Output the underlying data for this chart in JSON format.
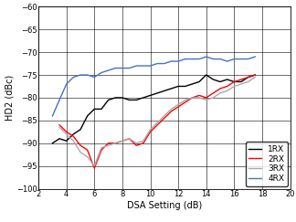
{
  "title": "",
  "xlabel": "DSA Setting (dB)",
  "ylabel": "HD2 (dBc)",
  "xlim": [
    2,
    20
  ],
  "ylim": [
    -100,
    -60
  ],
  "xticks": [
    2,
    4,
    6,
    8,
    10,
    12,
    14,
    16,
    18,
    20
  ],
  "yticks": [
    -100,
    -95,
    -90,
    -85,
    -80,
    -75,
    -70,
    -65,
    -60
  ],
  "series": [
    {
      "label": "1RX",
      "color": "#000000",
      "linewidth": 1.0,
      "linestyle": "solid",
      "x": [
        3.0,
        3.5,
        4.0,
        4.5,
        5.0,
        5.5,
        6.0,
        6.5,
        7.0,
        7.5,
        8.0,
        8.5,
        9.0,
        9.5,
        10.0,
        10.5,
        11.0,
        11.5,
        12.0,
        12.5,
        13.0,
        13.5,
        14.0,
        14.5,
        15.0,
        15.5,
        16.0,
        16.5,
        17.0,
        17.5
      ],
      "y": [
        -90.0,
        -89.0,
        -89.5,
        -88.0,
        -87.0,
        -84.0,
        -82.5,
        -82.5,
        -80.5,
        -80.0,
        -80.0,
        -80.5,
        -80.5,
        -80.0,
        -79.5,
        -79.0,
        -78.5,
        -78.0,
        -77.5,
        -77.5,
        -77.0,
        -76.5,
        -75.0,
        -76.0,
        -76.5,
        -76.0,
        -76.5,
        -76.5,
        -75.5,
        -75.0
      ]
    },
    {
      "label": "2RX",
      "color": "#ff0000",
      "linewidth": 1.0,
      "linestyle": "solid",
      "x": [
        3.5,
        4.0,
        4.5,
        5.0,
        5.5,
        6.0,
        6.5,
        7.0,
        7.5,
        8.0,
        8.5,
        9.0,
        9.5,
        10.0,
        10.5,
        11.0,
        11.5,
        12.0,
        12.5,
        13.0,
        13.5,
        14.0,
        14.5,
        15.0,
        15.5,
        16.0,
        16.5,
        17.0,
        17.5
      ],
      "y": [
        -86.0,
        -87.5,
        -88.5,
        -90.5,
        -91.5,
        -95.5,
        -91.5,
        -90.0,
        -90.0,
        -89.5,
        -89.0,
        -90.5,
        -90.0,
        -87.5,
        -86.0,
        -84.5,
        -83.0,
        -82.0,
        -81.0,
        -80.0,
        -79.5,
        -80.0,
        -79.0,
        -78.0,
        -77.5,
        -76.5,
        -76.0,
        -75.5,
        -75.0
      ]
    },
    {
      "label": "3RX",
      "color": "#aaaaaa",
      "linewidth": 1.0,
      "linestyle": "solid",
      "x": [
        3.5,
        4.0,
        4.5,
        5.0,
        5.5,
        6.0,
        6.5,
        7.0,
        7.5,
        8.0,
        8.5,
        9.0,
        9.5,
        10.0,
        10.5,
        11.0,
        11.5,
        12.0,
        12.5,
        13.0,
        13.5,
        14.0,
        14.5,
        15.0,
        15.5,
        16.0,
        16.5,
        17.0,
        17.5
      ],
      "y": [
        -86.5,
        -88.0,
        -89.5,
        -92.0,
        -93.0,
        -95.0,
        -91.0,
        -90.5,
        -90.0,
        -89.5,
        -89.0,
        -90.0,
        -89.5,
        -87.0,
        -85.5,
        -84.0,
        -82.5,
        -81.5,
        -80.5,
        -80.0,
        -80.0,
        -80.5,
        -80.0,
        -79.0,
        -78.5,
        -77.5,
        -77.0,
        -76.5,
        -75.5
      ]
    },
    {
      "label": "4RX",
      "color": "#4472c4",
      "linewidth": 1.0,
      "linestyle": "solid",
      "x": [
        3.0,
        3.5,
        4.0,
        4.5,
        5.0,
        5.5,
        6.0,
        6.5,
        7.0,
        7.5,
        8.0,
        8.5,
        9.0,
        9.5,
        10.0,
        10.5,
        11.0,
        11.5,
        12.0,
        12.5,
        13.0,
        13.5,
        14.0,
        14.5,
        15.0,
        15.5,
        16.0,
        16.5,
        17.0,
        17.5
      ],
      "y": [
        -84.0,
        -80.5,
        -77.0,
        -75.5,
        -75.0,
        -75.0,
        -75.5,
        -74.5,
        -74.0,
        -73.5,
        -73.5,
        -73.5,
        -73.0,
        -73.0,
        -73.0,
        -72.5,
        -72.5,
        -72.0,
        -72.0,
        -71.5,
        -71.5,
        -71.5,
        -71.0,
        -71.5,
        -71.5,
        -72.0,
        -71.5,
        -71.5,
        -71.5,
        -71.0
      ]
    }
  ],
  "legend_loc": "lower right",
  "grid_color": "#000000",
  "grid_linewidth": 0.4,
  "bg_color": "#ffffff",
  "tick_labelsize": 6,
  "xlabel_fontsize": 7,
  "ylabel_fontsize": 7,
  "legend_fontsize": 6.5
}
